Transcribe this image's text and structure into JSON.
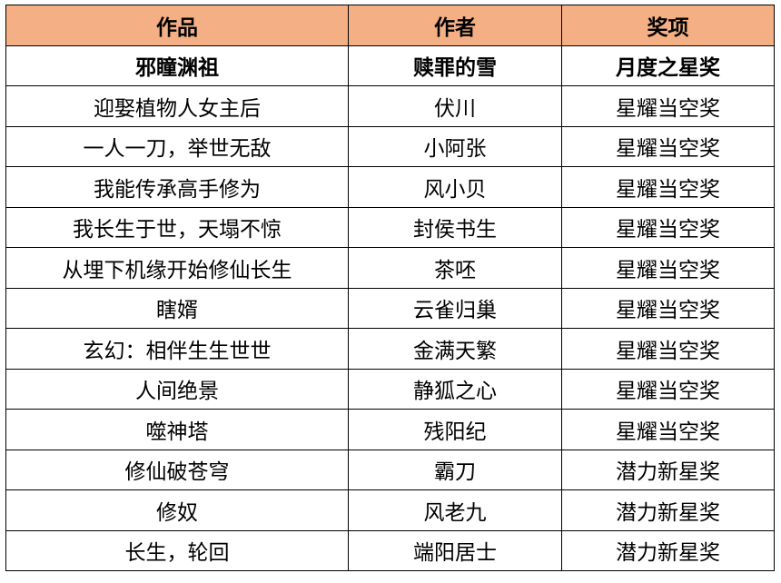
{
  "colors": {
    "header_bg": "#F4B084"
  },
  "headers": [
    "作品",
    "作者",
    "奖项"
  ],
  "rows": [
    [
      "邪瞳渊祖",
      "赎罪的雪",
      "月度之星奖"
    ],
    [
      "迎娶植物人女主后",
      "伏川",
      "星耀当空奖"
    ],
    [
      "一人一刀，举世无敌",
      "小阿张",
      "星耀当空奖"
    ],
    [
      "我能传承高手修为",
      "风小贝",
      "星耀当空奖"
    ],
    [
      "我长生于世，天塌不惊",
      "封侯书生",
      "星耀当空奖"
    ],
    [
      "从埋下机缘开始修仙长生",
      "茶呸",
      "星耀当空奖"
    ],
    [
      "瞎婿",
      "云雀归巢",
      "星耀当空奖"
    ],
    [
      "玄幻：相伴生生世世",
      "金满天繁",
      "星耀当空奖"
    ],
    [
      "人间绝景",
      "静狐之心",
      "星耀当空奖"
    ],
    [
      "噬神塔",
      "残阳纪",
      "星耀当空奖"
    ],
    [
      "修仙破苍穹",
      "霸刀",
      "潜力新星奖"
    ],
    [
      "修奴",
      "风老九",
      "潜力新星奖"
    ],
    [
      "长生，轮回",
      "端阳居士",
      "潜力新星奖"
    ]
  ]
}
